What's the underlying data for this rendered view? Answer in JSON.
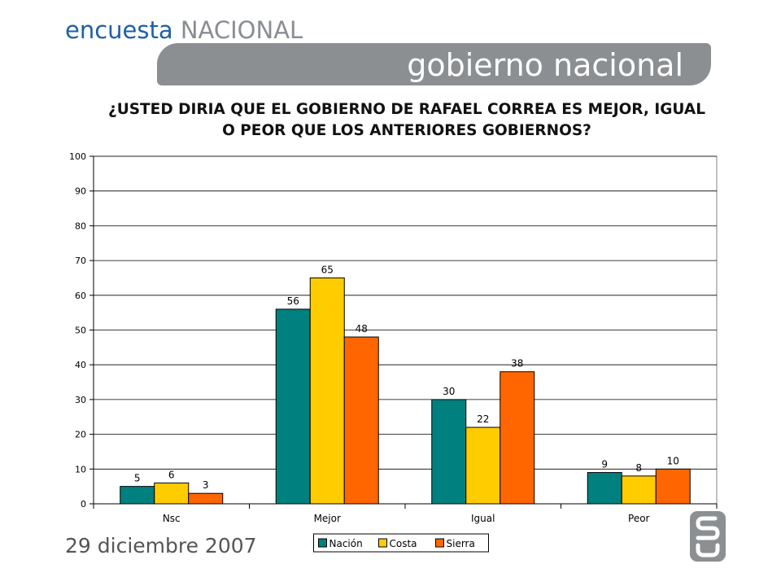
{
  "header": {
    "brand_part1": "encuesta",
    "brand_part2": "NACIONAL",
    "section_title": "gobierno nacional"
  },
  "question": {
    "line1": "¿USTED DIRIA QUE EL GOBIERNO DE RAFAEL CORREA ES MEJOR, IGUAL",
    "line2": "O PEOR QUE LOS ANTERIORES GOBIERNOS?"
  },
  "footer": {
    "date": "29 diciembre 2007"
  },
  "chart_data": {
    "type": "bar",
    "categories": [
      "Nsc",
      "Mejor",
      "Igual",
      "Peor"
    ],
    "series": [
      {
        "name": "Nación",
        "color": "#00807f",
        "values": [
          5,
          56,
          30,
          9
        ]
      },
      {
        "name": "Costa",
        "color": "#ffcc00",
        "values": [
          6,
          65,
          22,
          8
        ]
      },
      {
        "name": "Sierra",
        "color": "#ff6600",
        "values": [
          3,
          48,
          38,
          10
        ]
      }
    ],
    "ylim": [
      0,
      100
    ],
    "yticks": [
      0,
      10,
      20,
      30,
      40,
      50,
      60,
      70,
      80,
      90,
      100
    ],
    "grid": true,
    "legend": "bottom-center"
  }
}
